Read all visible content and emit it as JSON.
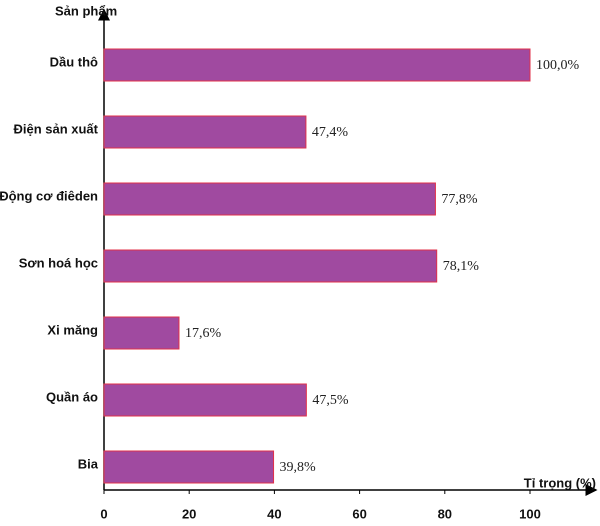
{
  "chart_data": {
    "type": "bar",
    "orientation": "horizontal",
    "y_axis_title": "Sản phẩm",
    "x_axis_title": "Tỉ trọng (%)",
    "categories": [
      "Dầu thô",
      "Điện sản xuất",
      "Động cơ điêden",
      "Sơn hoá học",
      "Xi măng",
      "Quần áo",
      "Bia"
    ],
    "values": [
      100.0,
      47.4,
      77.8,
      78.1,
      17.6,
      47.5,
      39.8
    ],
    "value_labels": [
      "100,0%",
      "47,4%",
      "77,8%",
      "78,1%",
      "17,6%",
      "47,5%",
      "39,8%"
    ],
    "color": "#a04aa0",
    "xlim": [
      0,
      100
    ],
    "xticks": [
      0,
      20,
      40,
      60,
      80,
      100
    ],
    "grid": false
  }
}
